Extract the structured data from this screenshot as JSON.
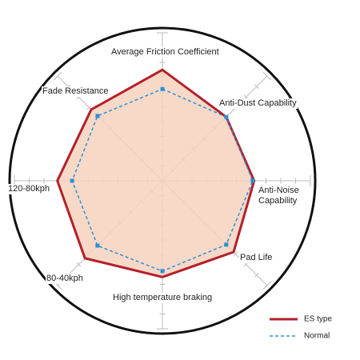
{
  "chart_data": {
    "type": "radar",
    "categories": [
      "Average Friction Coefficient",
      "Anti-Dust Capability",
      "Anti-Noise Capability",
      "Pad Life",
      "High temperature braking",
      "80-40kph",
      "120-80kph",
      "Fade Resistance"
    ],
    "rlim": [
      0,
      10
    ],
    "rticks": [
      1,
      2,
      3,
      4,
      5,
      6,
      7,
      8,
      9,
      10
    ],
    "series": [
      {
        "name": "ES type",
        "color": "#b3202b",
        "fill": "#f7d2bd",
        "values": [
          7.5,
          6.1,
          6.2,
          6.8,
          6.5,
          7.4,
          7.1,
          6.8
        ]
      },
      {
        "name": "Normal",
        "color": "#2b8fd8",
        "values": [
          6.2,
          6.1,
          6.1,
          6.1,
          6.1,
          6.2,
          6.1,
          6.2
        ]
      }
    ]
  }
}
